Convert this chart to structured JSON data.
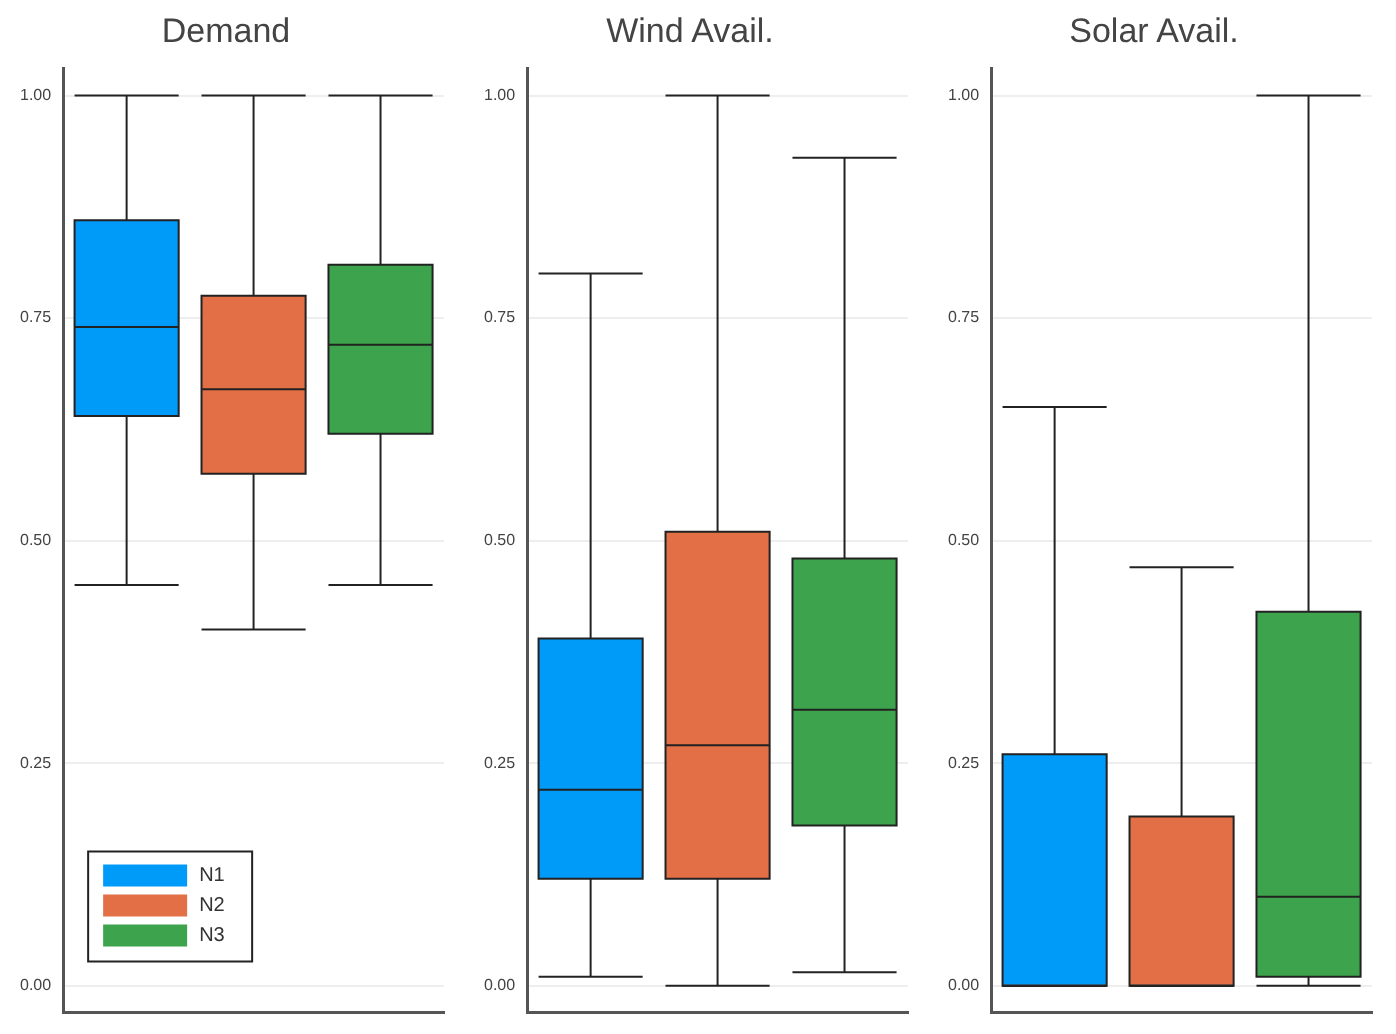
{
  "chart_data": [
    {
      "type": "box",
      "title": "Demand",
      "categories": [
        null,
        null,
        null
      ],
      "tick_labels": "y",
      "grid": "y",
      "legend": "bottom left",
      "ylim": [
        -0.03,
        1.03
      ],
      "yticks": [
        {
          "value": 0,
          "label": "0.00"
        },
        {
          "value": 0.25,
          "label": "0.25"
        },
        {
          "value": 0.5,
          "label": "0.50"
        },
        {
          "value": 0.75,
          "label": "0.75"
        },
        {
          "value": 1,
          "label": "1.00"
        }
      ],
      "series": [
        {
          "name": "N1",
          "color": "#009af9",
          "boxes": [
            {
              "low": 0.45,
              "q1": 0.64,
              "median": 0.74,
              "q3": 0.86,
              "high": 1.0
            },
            null,
            null
          ]
        },
        {
          "name": "N2",
          "color": "#e26f46",
          "boxes": [
            null,
            {
              "low": 0.4,
              "q1": 0.575,
              "median": 0.67,
              "q3": 0.775,
              "high": 1.0
            },
            null
          ]
        },
        {
          "name": "N3",
          "color": "#3da44d",
          "boxes": [
            null,
            null,
            {
              "low": 0.45,
              "q1": 0.62,
              "median": 0.72,
              "q3": 0.81,
              "high": 1.0
            }
          ]
        }
      ]
    },
    {
      "type": "box",
      "title": "Wind Avail.",
      "categories": [
        null,
        null,
        null
      ],
      "tick_labels": "y",
      "grid": "y",
      "ylim": [
        -0.03,
        1.03
      ],
      "yticks": [
        {
          "value": 0,
          "label": "0.00"
        },
        {
          "value": 0.25,
          "label": "0.25"
        },
        {
          "value": 0.5,
          "label": "0.50"
        },
        {
          "value": 0.75,
          "label": "0.75"
        },
        {
          "value": 1,
          "label": "1.00"
        }
      ],
      "series": [
        {
          "color": "#009af9",
          "boxes": [
            {
              "low": 0.01,
              "q1": 0.12,
              "median": 0.22,
              "q3": 0.39,
              "high": 0.8
            },
            null,
            null
          ]
        },
        {
          "color": "#e26f46",
          "boxes": [
            null,
            {
              "low": 0.0,
              "q1": 0.12,
              "median": 0.27,
              "q3": 0.51,
              "high": 1.0
            },
            null
          ]
        },
        {
          "color": "#3da44d",
          "boxes": [
            null,
            null,
            {
              "low": 0.015,
              "q1": 0.18,
              "median": 0.31,
              "q3": 0.48,
              "high": 0.93
            }
          ]
        }
      ]
    },
    {
      "type": "box",
      "title": "Solar Avail.",
      "categories": [
        null,
        null,
        null
      ],
      "tick_labels": "y",
      "grid": "y",
      "ylim": [
        -0.03,
        1.03
      ],
      "yticks": [
        {
          "value": 0,
          "label": "0.00"
        },
        {
          "value": 0.25,
          "label": "0.25"
        },
        {
          "value": 0.5,
          "label": "0.50"
        },
        {
          "value": 0.75,
          "label": "0.75"
        },
        {
          "value": 1,
          "label": "1.00"
        }
      ],
      "series": [
        {
          "color": "#009af9",
          "boxes": [
            {
              "low": 0.0,
              "q1": 0.0,
              "median": 0.0,
              "q3": 0.26,
              "high": 0.65
            },
            null,
            null
          ]
        },
        {
          "color": "#e26f46",
          "boxes": [
            null,
            {
              "low": 0.0,
              "q1": 0.0,
              "median": 0.0,
              "q3": 0.19,
              "high": 0.47
            },
            null
          ]
        },
        {
          "color": "#3da44d",
          "boxes": [
            null,
            null,
            {
              "low": 0.0,
              "q1": 0.01,
              "median": 0.1,
              "q3": 0.42,
              "high": 1.0
            }
          ]
        }
      ]
    }
  ]
}
